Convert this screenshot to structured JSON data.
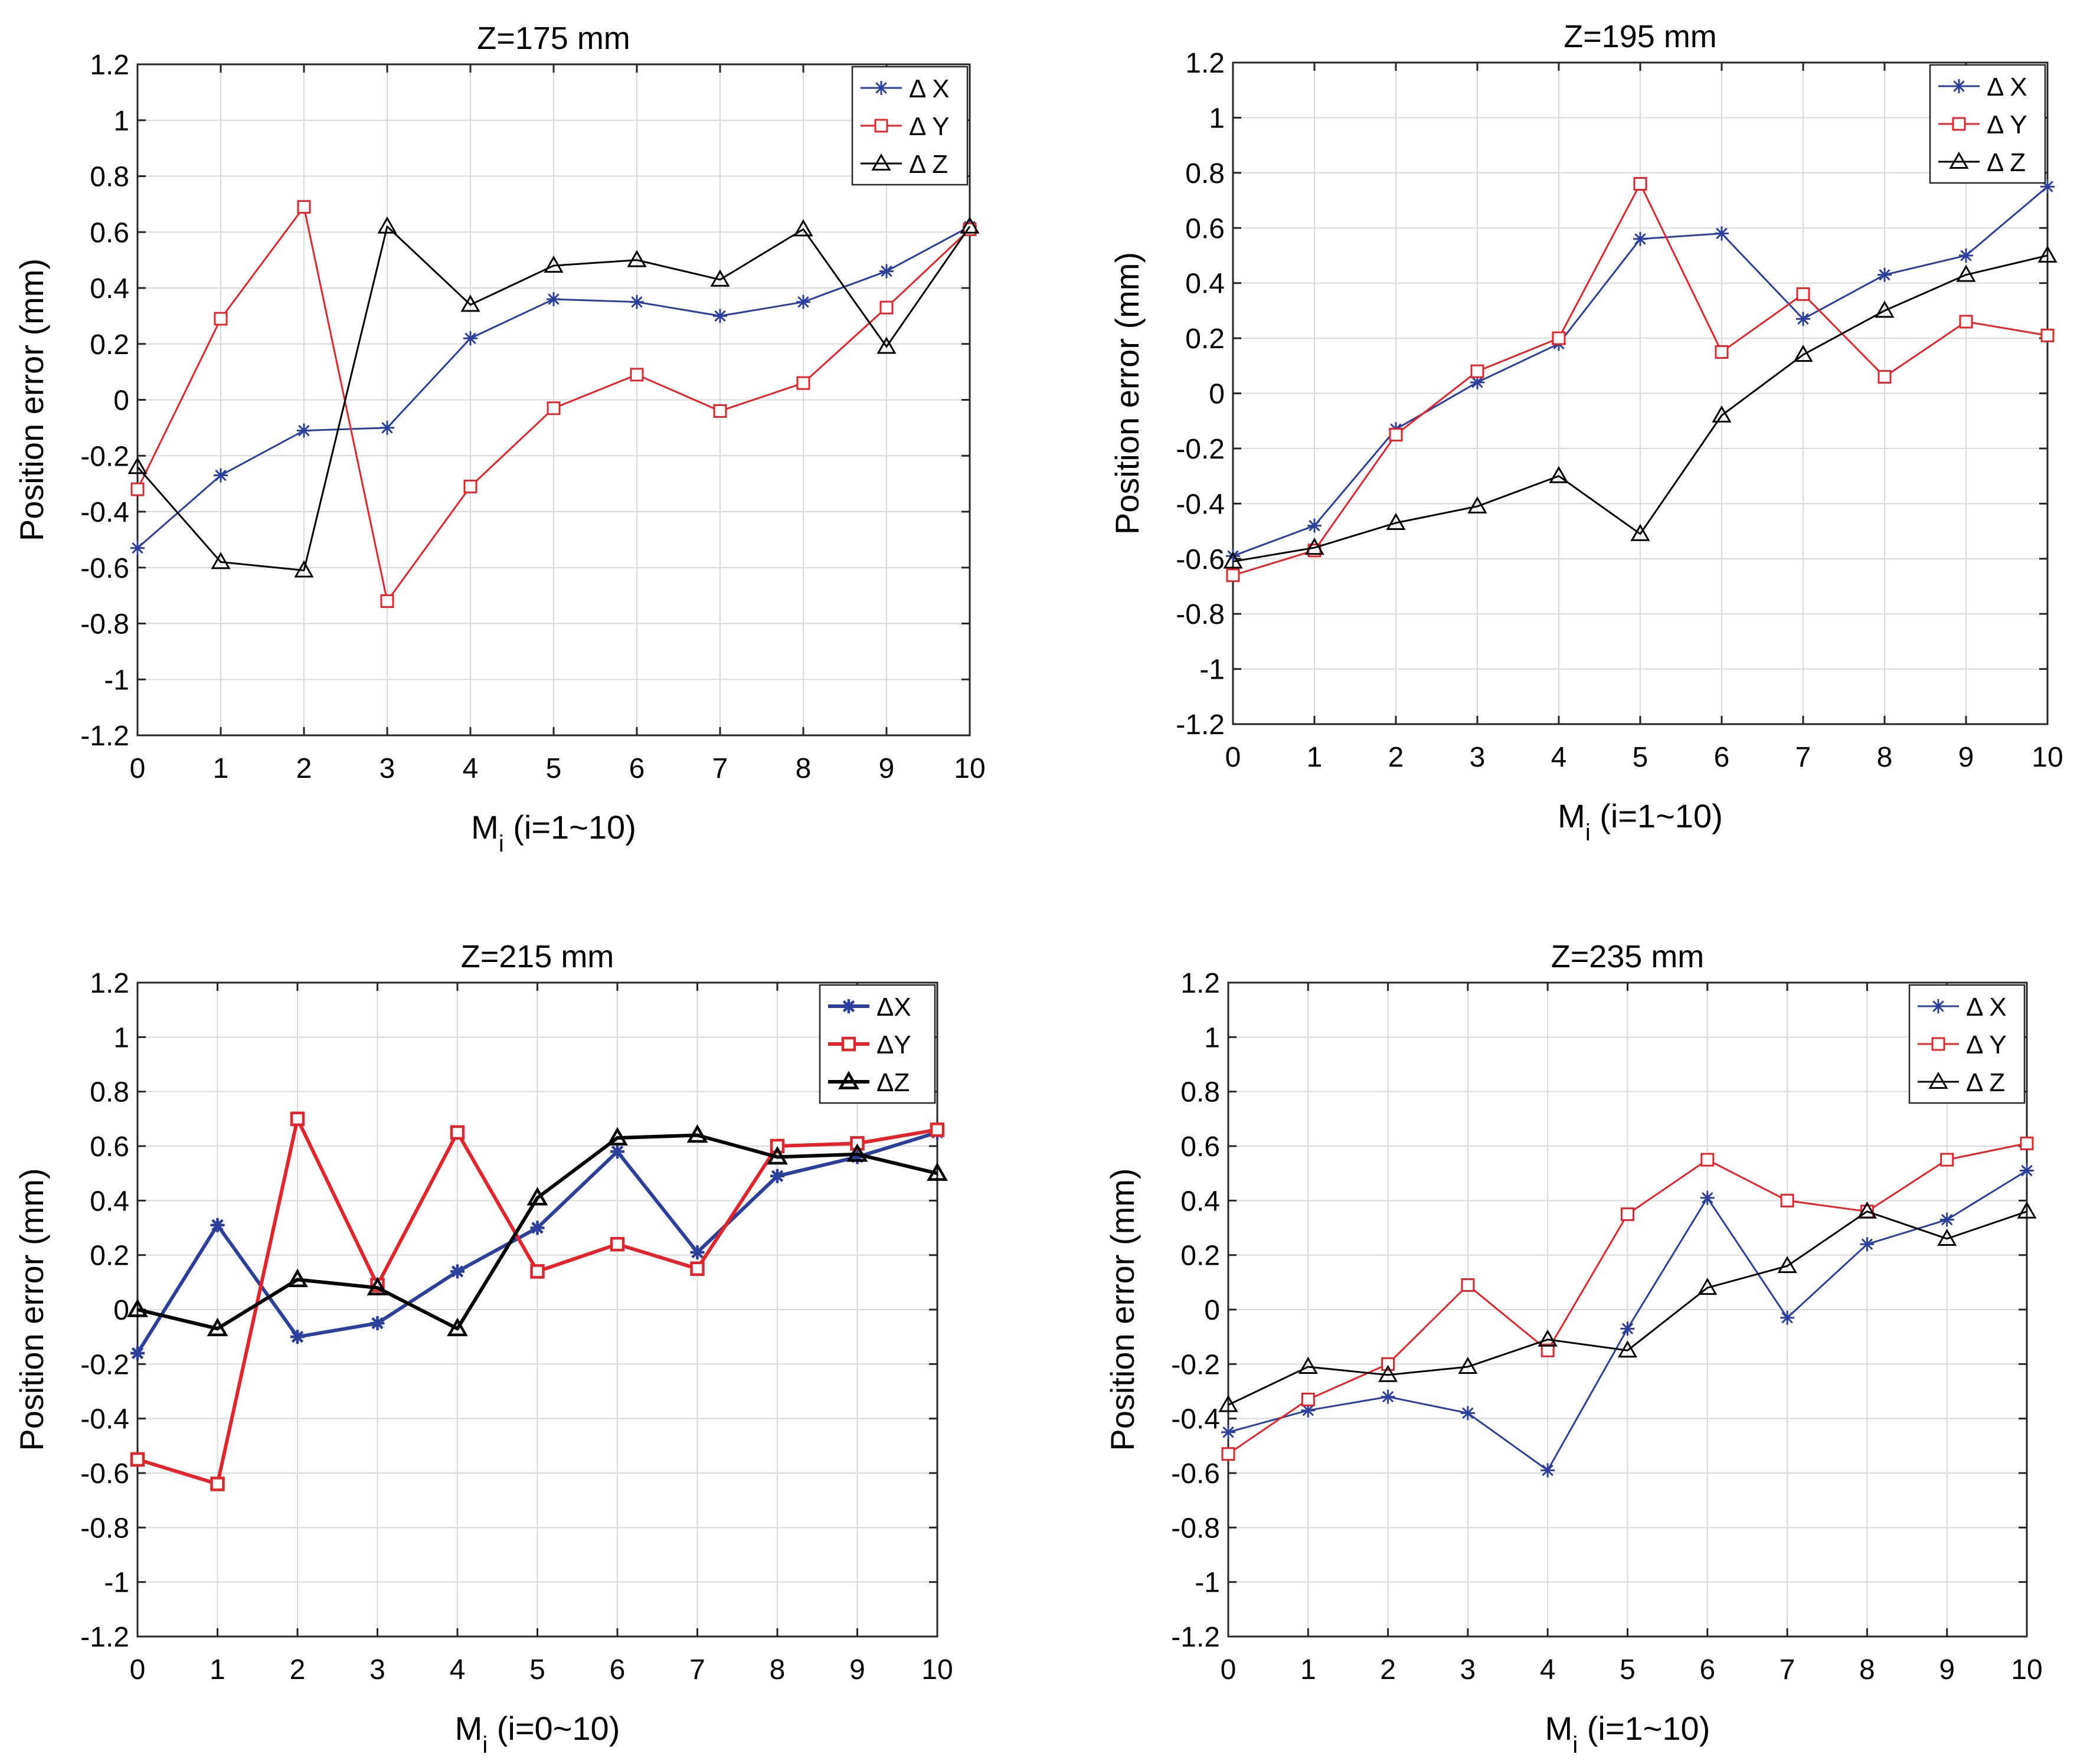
{
  "colors": {
    "dx": "#2b3f9b",
    "dy": "#e3242b",
    "dz": "#000000",
    "grid": "#d9d9d9",
    "axis": "#262626"
  },
  "chart_data": [
    {
      "type": "line",
      "title": "Z=175 mm",
      "ylabel": "Position error (mm)",
      "xlabel_main": "M",
      "xlabel_sub": "i",
      "xlabel_rest": " (i=1~10)",
      "xlim": [
        0,
        10
      ],
      "ylim": [
        -1.2,
        1.2
      ],
      "xticks": [
        "0",
        "1",
        "2",
        "3",
        "4",
        "5",
        "6",
        "7",
        "8",
        "9",
        "10"
      ],
      "yticks": [
        "1.2",
        "1",
        "0.8",
        "0.6",
        "0.4",
        "0.2",
        "0",
        "-0.2",
        "-0.4",
        "-0.6",
        "-0.8",
        "-1",
        "-1.2"
      ],
      "x": [
        0,
        1,
        2,
        3,
        4,
        5,
        6,
        7,
        8,
        9,
        10
      ],
      "bold_lines": false,
      "series": [
        {
          "key": "dx",
          "name": "Δ X",
          "values": [
            -0.53,
            -0.27,
            -0.11,
            -0.1,
            0.22,
            0.36,
            0.35,
            0.3,
            0.35,
            0.46,
            0.62
          ]
        },
        {
          "key": "dy",
          "name": "Δ Y",
          "values": [
            -0.32,
            0.29,
            0.69,
            -0.72,
            -0.31,
            -0.03,
            0.09,
            -0.04,
            0.06,
            0.33,
            0.61
          ]
        },
        {
          "key": "dz",
          "name": "Δ Z",
          "values": [
            -0.24,
            -0.58,
            -0.61,
            0.62,
            0.34,
            0.48,
            0.5,
            0.43,
            0.61,
            0.19,
            0.62
          ]
        }
      ]
    },
    {
      "type": "line",
      "title": "Z=195 mm",
      "ylabel": "Position error (mm)",
      "xlabel_main": "M",
      "xlabel_sub": "i",
      "xlabel_rest": " (i=1~10)",
      "xlim": [
        0,
        10
      ],
      "ylim": [
        -1.2,
        1.2
      ],
      "xticks": [
        "0",
        "1",
        "2",
        "3",
        "4",
        "5",
        "6",
        "7",
        "8",
        "9",
        "10"
      ],
      "yticks": [
        "1.2",
        "1",
        "0.8",
        "0.6",
        "0.4",
        "0.2",
        "0",
        "-0.2",
        "-0.4",
        "-0.6",
        "-0.8",
        "-1",
        "-1.2"
      ],
      "x": [
        0,
        1,
        2,
        3,
        4,
        5,
        6,
        7,
        8,
        9,
        10
      ],
      "bold_lines": false,
      "series": [
        {
          "key": "dx",
          "name": "Δ X",
          "values": [
            -0.59,
            -0.48,
            -0.13,
            0.04,
            0.18,
            0.56,
            0.58,
            0.27,
            0.43,
            0.5,
            0.75
          ]
        },
        {
          "key": "dy",
          "name": "Δ Y",
          "values": [
            -0.66,
            -0.57,
            -0.15,
            0.08,
            0.2,
            0.76,
            0.15,
            0.36,
            0.06,
            0.26,
            0.21
          ]
        },
        {
          "key": "dz",
          "name": "Δ Z",
          "values": [
            -0.61,
            -0.56,
            -0.47,
            -0.41,
            -0.3,
            -0.51,
            -0.08,
            0.14,
            0.3,
            0.43,
            0.5
          ]
        }
      ]
    },
    {
      "type": "line",
      "title": "Z=215 mm",
      "ylabel": "Position error (mm)",
      "xlabel_main": "M",
      "xlabel_sub": "i",
      "xlabel_rest": " (i=0~10)",
      "xlim": [
        0,
        10
      ],
      "ylim": [
        -1.2,
        1.2
      ],
      "xticks": [
        "0",
        "1",
        "2",
        "3",
        "4",
        "5",
        "6",
        "7",
        "8",
        "9",
        "10"
      ],
      "yticks": [
        "1.2",
        "1",
        "0.8",
        "0.6",
        "0.4",
        "0.2",
        "0",
        "-0.2",
        "-0.4",
        "-0.6",
        "-0.8",
        "-1",
        "-1.2"
      ],
      "x": [
        0,
        1,
        2,
        3,
        4,
        5,
        6,
        7,
        8,
        9,
        10
      ],
      "bold_lines": true,
      "series": [
        {
          "key": "dx",
          "name": "ΔX",
          "values": [
            -0.16,
            0.31,
            -0.1,
            -0.05,
            0.14,
            0.3,
            0.58,
            0.21,
            0.49,
            0.56,
            0.65
          ]
        },
        {
          "key": "dy",
          "name": "ΔY",
          "values": [
            -0.55,
            -0.64,
            0.7,
            0.09,
            0.65,
            0.14,
            0.24,
            0.15,
            0.6,
            0.61,
            0.66
          ]
        },
        {
          "key": "dz",
          "name": "ΔZ",
          "values": [
            0.0,
            -0.07,
            0.11,
            0.08,
            -0.07,
            0.41,
            0.63,
            0.64,
            0.56,
            0.57,
            0.5
          ]
        }
      ]
    },
    {
      "type": "line",
      "title": "Z=235 mm",
      "ylabel": "Position error (mm)",
      "xlabel_main": "M",
      "xlabel_sub": "i",
      "xlabel_rest": " (i=1~10)",
      "xlim": [
        0,
        10
      ],
      "ylim": [
        -1.2,
        1.2
      ],
      "xticks": [
        "0",
        "1",
        "2",
        "3",
        "4",
        "5",
        "6",
        "7",
        "8",
        "9",
        "10"
      ],
      "yticks": [
        "1.2",
        "1",
        "0.8",
        "0.6",
        "0.4",
        "0.2",
        "0",
        "-0.2",
        "-0.4",
        "-0.6",
        "-0.8",
        "-1",
        "-1.2"
      ],
      "x": [
        0,
        1,
        2,
        3,
        4,
        5,
        6,
        7,
        8,
        9,
        10
      ],
      "bold_lines": false,
      "series": [
        {
          "key": "dx",
          "name": "Δ X",
          "values": [
            -0.45,
            -0.37,
            -0.32,
            -0.38,
            -0.59,
            -0.07,
            0.41,
            -0.03,
            0.24,
            0.33,
            0.51
          ]
        },
        {
          "key": "dy",
          "name": "Δ Y",
          "values": [
            -0.53,
            -0.33,
            -0.2,
            0.09,
            -0.15,
            0.35,
            0.55,
            0.4,
            0.36,
            0.55,
            0.61
          ]
        },
        {
          "key": "dz",
          "name": "Δ Z",
          "values": [
            -0.35,
            -0.21,
            -0.24,
            -0.21,
            -0.11,
            -0.15,
            0.08,
            0.16,
            0.36,
            0.26,
            0.36
          ]
        }
      ]
    }
  ]
}
